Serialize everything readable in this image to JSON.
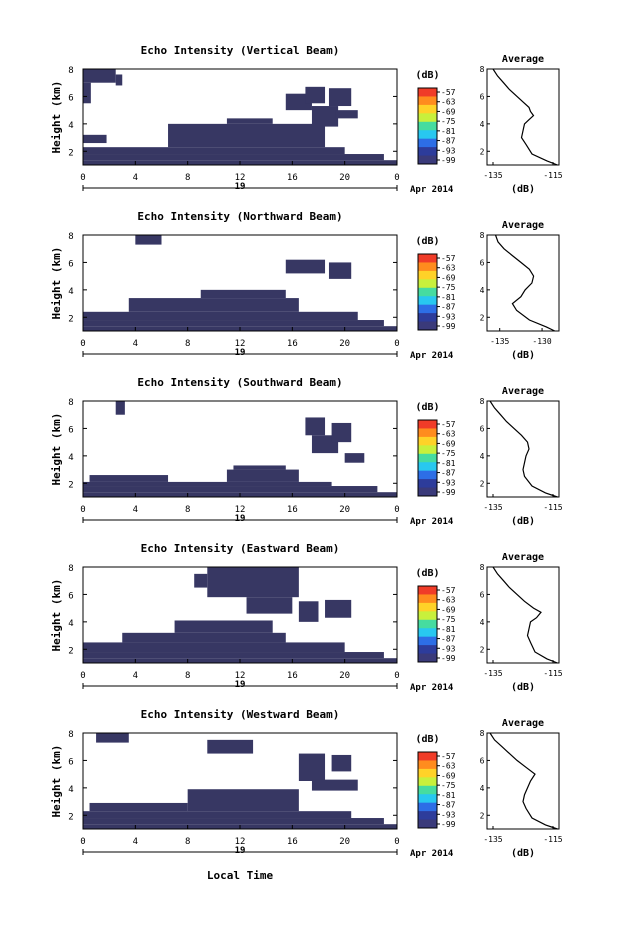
{
  "figure": {
    "xlabel": "Local Time",
    "date_label": "Apr 2014",
    "day_label": "19"
  },
  "colorbar": {
    "unit_label": "(dB)",
    "ticks": [
      "-57",
      "-63",
      "-69",
      "-75",
      "-81",
      "-87",
      "-93",
      "-99"
    ],
    "colors": [
      "#f03c28",
      "#ff8c1e",
      "#ffd228",
      "#c8f03c",
      "#46dca0",
      "#28c8f0",
      "#2d6ee6",
      "#2d3c9b",
      "#3a3a7a"
    ]
  },
  "colors": {
    "echo_fill": "#373763",
    "line": "#000000"
  },
  "chart_data": [
    {
      "type": "heatmap",
      "title": "Echo Intensity (Vertical Beam)",
      "xlabel": "Local Time",
      "ylabel": "Height (km)",
      "xlim": [
        0,
        24
      ],
      "ylim": [
        1,
        8
      ],
      "xticks": [
        "0",
        "4",
        "8",
        "12",
        "16",
        "20",
        "0"
      ],
      "yticks": [
        "2",
        "4",
        "6",
        "8"
      ],
      "regions": [
        {
          "t0": 0.0,
          "t1": 24.0,
          "h0": 1.0,
          "h1": 1.35
        },
        {
          "t0": 0.0,
          "t1": 23.0,
          "h0": 1.35,
          "h1": 1.8
        },
        {
          "t0": 0.0,
          "t1": 20.0,
          "h0": 1.8,
          "h1": 2.3
        },
        {
          "t0": 0.0,
          "t1": 1.8,
          "h0": 2.6,
          "h1": 3.2
        },
        {
          "t0": 6.5,
          "t1": 18.5,
          "h0": 2.3,
          "h1": 4.0
        },
        {
          "t0": 11.0,
          "t1": 14.5,
          "h0": 4.0,
          "h1": 4.4
        },
        {
          "t0": 0.0,
          "t1": 2.5,
          "h0": 7.0,
          "h1": 8.0
        },
        {
          "t0": 0.0,
          "t1": 0.6,
          "h0": 5.5,
          "h1": 7.0
        },
        {
          "t0": 2.5,
          "t1": 3.0,
          "h0": 6.8,
          "h1": 7.6
        },
        {
          "t0": 15.5,
          "t1": 17.5,
          "h0": 5.0,
          "h1": 6.2
        },
        {
          "t0": 17.0,
          "t1": 18.5,
          "h0": 5.5,
          "h1": 6.7
        },
        {
          "t0": 18.8,
          "t1": 20.5,
          "h0": 5.3,
          "h1": 6.6
        },
        {
          "t0": 17.5,
          "t1": 19.5,
          "h0": 3.8,
          "h1": 5.3
        },
        {
          "t0": 19.3,
          "t1": 21.0,
          "h0": 4.4,
          "h1": 5.0
        }
      ],
      "profile": {
        "title": "Average",
        "xlabel": "(dB)",
        "xticks": [
          "-135",
          "-115"
        ],
        "xlim": [
          -137,
          -113
        ],
        "height_km": [
          1.0,
          1.3,
          1.8,
          2.5,
          3.0,
          3.5,
          4.0,
          4.3,
          4.6,
          4.9,
          5.2,
          5.6,
          6.0,
          6.5,
          7.0,
          7.5,
          8.0
        ],
        "db": [
          -113.5,
          -117,
          -122,
          -124,
          -125.5,
          -125,
          -124.5,
          -123,
          -121.5,
          -122.5,
          -123,
          -125,
          -127,
          -129.5,
          -131.5,
          -133.5,
          -135
        ]
      }
    },
    {
      "type": "heatmap",
      "title": "Echo Intensity (Northward Beam)",
      "xlabel": "Local Time",
      "ylabel": "Height (km)",
      "xlim": [
        0,
        24
      ],
      "ylim": [
        1,
        8
      ],
      "xticks": [
        "0",
        "4",
        "8",
        "12",
        "16",
        "20",
        "0"
      ],
      "yticks": [
        "2",
        "4",
        "6",
        "8"
      ],
      "regions": [
        {
          "t0": 0.0,
          "t1": 24.0,
          "h0": 1.0,
          "h1": 1.35
        },
        {
          "t0": 0.0,
          "t1": 23.0,
          "h0": 1.35,
          "h1": 1.8
        },
        {
          "t0": 0.0,
          "t1": 21.0,
          "h0": 1.8,
          "h1": 2.4
        },
        {
          "t0": 3.5,
          "t1": 16.5,
          "h0": 2.4,
          "h1": 3.4
        },
        {
          "t0": 9.0,
          "t1": 15.5,
          "h0": 3.4,
          "h1": 4.0
        },
        {
          "t0": 4.0,
          "t1": 6.0,
          "h0": 7.3,
          "h1": 8.0
        },
        {
          "t0": 15.5,
          "t1": 18.5,
          "h0": 5.2,
          "h1": 6.2
        },
        {
          "t0": 18.8,
          "t1": 20.5,
          "h0": 4.8,
          "h1": 6.0
        }
      ],
      "profile": {
        "title": "Average",
        "xlabel": "(dB)",
        "xticks": [
          "-135",
          "-130"
        ],
        "xlim": [
          -136.5,
          -128
        ],
        "height_km": [
          1.0,
          1.3,
          1.8,
          2.5,
          3.0,
          3.5,
          4.0,
          4.5,
          5.0,
          5.5,
          6.0,
          6.5,
          7.0,
          7.5,
          8.0
        ],
        "db": [
          -128.5,
          -129.5,
          -131.5,
          -133,
          -133.5,
          -132.5,
          -132,
          -131.2,
          -131,
          -131.5,
          -132.5,
          -133.5,
          -134.5,
          -135.2,
          -135.5
        ]
      }
    },
    {
      "type": "heatmap",
      "title": "Echo Intensity (Southward Beam)",
      "xlabel": "Local Time",
      "ylabel": "Height (km)",
      "xlim": [
        0,
        24
      ],
      "ylim": [
        1,
        8
      ],
      "xticks": [
        "0",
        "4",
        "8",
        "12",
        "16",
        "20",
        "0"
      ],
      "yticks": [
        "2",
        "4",
        "6",
        "8"
      ],
      "regions": [
        {
          "t0": 0.0,
          "t1": 24.0,
          "h0": 1.0,
          "h1": 1.35
        },
        {
          "t0": 0.0,
          "t1": 22.5,
          "h0": 1.35,
          "h1": 1.8
        },
        {
          "t0": 0.0,
          "t1": 19.0,
          "h0": 1.8,
          "h1": 2.1
        },
        {
          "t0": 0.5,
          "t1": 6.5,
          "h0": 2.1,
          "h1": 2.6
        },
        {
          "t0": 11.0,
          "t1": 16.5,
          "h0": 2.1,
          "h1": 3.0
        },
        {
          "t0": 11.5,
          "t1": 15.5,
          "h0": 3.0,
          "h1": 3.3
        },
        {
          "t0": 2.5,
          "t1": 3.2,
          "h0": 7.0,
          "h1": 8.0
        },
        {
          "t0": 17.0,
          "t1": 18.5,
          "h0": 5.5,
          "h1": 6.8
        },
        {
          "t0": 17.5,
          "t1": 19.5,
          "h0": 4.2,
          "h1": 5.5
        },
        {
          "t0": 19.0,
          "t1": 20.5,
          "h0": 5.0,
          "h1": 6.4
        },
        {
          "t0": 20.0,
          "t1": 21.5,
          "h0": 3.5,
          "h1": 4.2
        }
      ],
      "profile": {
        "title": "Average",
        "xlabel": "(dB)",
        "xticks": [
          "-135",
          "-115"
        ],
        "xlim": [
          -137,
          -113
        ],
        "height_km": [
          1.0,
          1.3,
          1.8,
          2.5,
          3.0,
          3.5,
          4.0,
          4.5,
          5.0,
          5.5,
          6.0,
          6.5,
          7.0,
          7.5,
          8.0
        ],
        "db": [
          -113.5,
          -117.5,
          -122,
          -124.5,
          -125,
          -124.5,
          -124,
          -123,
          -123.5,
          -125.5,
          -128,
          -130.5,
          -132.5,
          -134.5,
          -136
        ]
      }
    },
    {
      "type": "heatmap",
      "title": "Echo Intensity (Eastward Beam)",
      "xlabel": "Local Time",
      "ylabel": "Height (km)",
      "xlim": [
        0,
        24
      ],
      "ylim": [
        1,
        8
      ],
      "xticks": [
        "0",
        "4",
        "8",
        "12",
        "16",
        "20",
        "0"
      ],
      "yticks": [
        "2",
        "4",
        "6",
        "8"
      ],
      "regions": [
        {
          "t0": 0.0,
          "t1": 24.0,
          "h0": 1.0,
          "h1": 1.35
        },
        {
          "t0": 0.0,
          "t1": 23.0,
          "h0": 1.35,
          "h1": 1.8
        },
        {
          "t0": 0.0,
          "t1": 20.0,
          "h0": 1.8,
          "h1": 2.5
        },
        {
          "t0": 3.0,
          "t1": 15.5,
          "h0": 2.5,
          "h1": 3.2
        },
        {
          "t0": 7.0,
          "t1": 14.5,
          "h0": 3.2,
          "h1": 4.1
        },
        {
          "t0": 9.5,
          "t1": 16.5,
          "h0": 5.8,
          "h1": 8.0
        },
        {
          "t0": 8.5,
          "t1": 9.5,
          "h0": 6.5,
          "h1": 7.5
        },
        {
          "t0": 12.5,
          "t1": 16.0,
          "h0": 4.6,
          "h1": 5.8
        },
        {
          "t0": 16.5,
          "t1": 18.0,
          "h0": 4.0,
          "h1": 5.5
        },
        {
          "t0": 18.5,
          "t1": 20.5,
          "h0": 4.3,
          "h1": 5.6
        }
      ],
      "profile": {
        "title": "Average",
        "xlabel": "(dB)",
        "xticks": [
          "-135",
          "-115"
        ],
        "xlim": [
          -137,
          -113
        ],
        "height_km": [
          1.0,
          1.3,
          1.8,
          2.5,
          3.0,
          3.5,
          4.0,
          4.3,
          4.7,
          5.0,
          5.5,
          6.0,
          6.5,
          7.0,
          7.5,
          8.0
        ],
        "db": [
          -113.5,
          -117,
          -121,
          -122.5,
          -123.5,
          -123,
          -122.5,
          -120.5,
          -119,
          -121.5,
          -124.5,
          -127,
          -129.5,
          -131.5,
          -133.5,
          -135
        ]
      }
    },
    {
      "type": "heatmap",
      "title": "Echo Intensity (Westward Beam)",
      "xlabel": "Local Time",
      "ylabel": "Height (km)",
      "xlim": [
        0,
        24
      ],
      "ylim": [
        1,
        8
      ],
      "xticks": [
        "0",
        "4",
        "8",
        "12",
        "16",
        "20",
        "0"
      ],
      "yticks": [
        "2",
        "4",
        "6",
        "8"
      ],
      "regions": [
        {
          "t0": 0.0,
          "t1": 24.0,
          "h0": 1.0,
          "h1": 1.35
        },
        {
          "t0": 0.0,
          "t1": 23.0,
          "h0": 1.35,
          "h1": 1.8
        },
        {
          "t0": 0.0,
          "t1": 20.5,
          "h0": 1.8,
          "h1": 2.3
        },
        {
          "t0": 0.5,
          "t1": 8.0,
          "h0": 2.3,
          "h1": 2.9
        },
        {
          "t0": 8.0,
          "t1": 16.5,
          "h0": 2.3,
          "h1": 3.9
        },
        {
          "t0": 1.0,
          "t1": 3.5,
          "h0": 7.3,
          "h1": 8.0
        },
        {
          "t0": 9.5,
          "t1": 13.0,
          "h0": 6.5,
          "h1": 7.5
        },
        {
          "t0": 16.5,
          "t1": 18.5,
          "h0": 4.5,
          "h1": 6.5
        },
        {
          "t0": 19.0,
          "t1": 20.5,
          "h0": 5.2,
          "h1": 6.4
        },
        {
          "t0": 17.5,
          "t1": 21.0,
          "h0": 3.8,
          "h1": 4.6
        }
      ],
      "profile": {
        "title": "Average",
        "xlabel": "(dB)",
        "xticks": [
          "-135",
          "-115"
        ],
        "xlim": [
          -137,
          -113
        ],
        "height_km": [
          1.0,
          1.3,
          1.8,
          2.5,
          3.0,
          3.5,
          4.0,
          4.5,
          5.0,
          5.5,
          6.0,
          6.5,
          7.0,
          7.5,
          8.0
        ],
        "db": [
          -113.5,
          -117.5,
          -122,
          -124,
          -125,
          -124.5,
          -123.5,
          -122.5,
          -121,
          -124,
          -127,
          -129.5,
          -132,
          -134.5,
          -136
        ]
      }
    }
  ]
}
